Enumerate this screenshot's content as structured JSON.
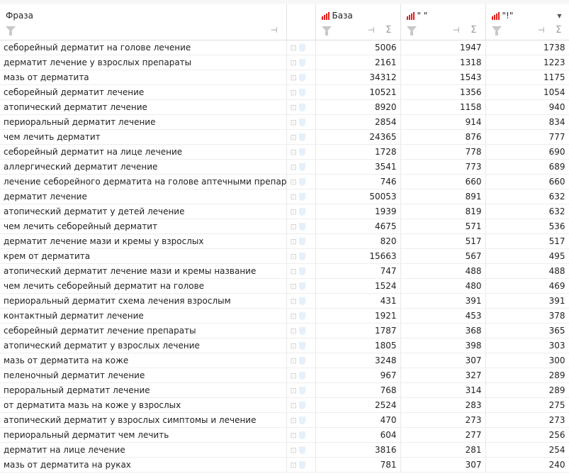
{
  "columns": {
    "phrase": "Фраза",
    "base": "База",
    "quoted": "\" \"",
    "excl": "\"!\""
  },
  "accent": "#e0201b",
  "rows": [
    [
      "себорейный дерматит на голове лечение",
      "5006",
      "1947",
      "1738"
    ],
    [
      "дерматит лечение у взрослых препараты",
      "2161",
      "1318",
      "1223"
    ],
    [
      "мазь от дерматита",
      "34312",
      "1543",
      "1175"
    ],
    [
      "себорейный дерматит лечение",
      "10521",
      "1356",
      "1054"
    ],
    [
      "атопический дерматит лечение",
      "8920",
      "1158",
      "940"
    ],
    [
      "периоральный дерматит лечение",
      "2854",
      "914",
      "834"
    ],
    [
      "чем лечить дерматит",
      "24365",
      "876",
      "777"
    ],
    [
      "себорейный дерматит на лице лечение",
      "1728",
      "778",
      "690"
    ],
    [
      "аллергический дерматит лечение",
      "3541",
      "773",
      "689"
    ],
    [
      "лечение себорейного дерматита на голове аптечными препаратами",
      "746",
      "660",
      "660"
    ],
    [
      "дерматит лечение",
      "50053",
      "891",
      "632"
    ],
    [
      "атопический дерматит у детей лечение",
      "1939",
      "819",
      "632"
    ],
    [
      "чем лечить себорейный дерматит",
      "4675",
      "571",
      "536"
    ],
    [
      "дерматит лечение мази и кремы у взрослых",
      "820",
      "517",
      "517"
    ],
    [
      "крем от дерматита",
      "15663",
      "567",
      "495"
    ],
    [
      "атопический дерматит лечение мази и кремы название",
      "747",
      "488",
      "488"
    ],
    [
      "чем лечить себорейный дерматит на голове",
      "1524",
      "480",
      "469"
    ],
    [
      "периоральный дерматит схема лечения взрослым",
      "431",
      "391",
      "391"
    ],
    [
      "контактный дерматит лечение",
      "1921",
      "453",
      "378"
    ],
    [
      "себорейный дерматит лечение препараты",
      "1787",
      "368",
      "365"
    ],
    [
      "атопический дерматит у взрослых лечение",
      "1805",
      "398",
      "303"
    ],
    [
      "мазь от дерматита на коже",
      "3248",
      "307",
      "300"
    ],
    [
      "пеленочный дерматит лечение",
      "967",
      "327",
      "289"
    ],
    [
      "пероральный дерматит лечение",
      "768",
      "314",
      "289"
    ],
    [
      "от дерматита мазь на коже у взрослых",
      "2524",
      "283",
      "275"
    ],
    [
      "атопический дерматит у взрослых симптомы и лечение",
      "470",
      "273",
      "273"
    ],
    [
      "периоральный дерматит чем лечить",
      "604",
      "277",
      "256"
    ],
    [
      "дерматит на лице лечение",
      "3816",
      "281",
      "254"
    ],
    [
      "мазь от дерматита на руках",
      "781",
      "307",
      "240"
    ]
  ]
}
